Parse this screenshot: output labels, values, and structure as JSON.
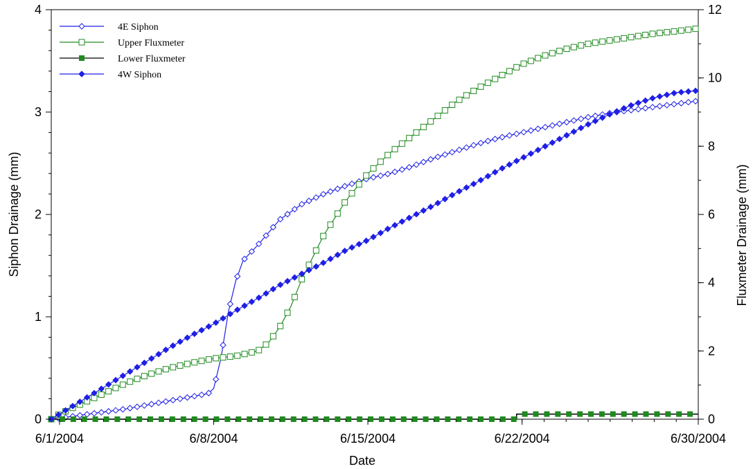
{
  "chart_data": {
    "type": "line",
    "title": "",
    "xlabel": "Date",
    "ylabel": "Siphon Drainage (mm)",
    "y2label": "Fluxmeter Drainage (mm)",
    "x_ticks": [
      "6/1/2004",
      "6/8/2004",
      "6/15/2004",
      "6/22/2004",
      "6/30/2004"
    ],
    "xlim": [
      "2004-05-31T15:00",
      "2004-06-30T00:00"
    ],
    "ylim": [
      0,
      4
    ],
    "y2lim": [
      0,
      12
    ],
    "y_ticks": [
      "0",
      "1",
      "2",
      "3",
      "4"
    ],
    "y2_ticks": [
      "0",
      "2",
      "4",
      "6",
      "8",
      "10",
      "12"
    ],
    "legend_position": "top-left",
    "grid": false,
    "series": [
      {
        "name": "4E Siphon",
        "axis": "left",
        "color": "#1f1fe6",
        "marker": "open-diamond",
        "x": [
          "2004-05-31T15:00",
          "2004-06-01T00:00",
          "2004-06-02T00:00",
          "2004-06-03T00:00",
          "2004-06-04T00:00",
          "2004-06-05T00:00",
          "2004-06-06T00:00",
          "2004-06-07T00:00",
          "2004-06-07T18:00",
          "2004-06-08T00:00",
          "2004-06-08T08:00",
          "2004-06-08T16:00",
          "2004-06-09T00:00",
          "2004-06-09T08:00",
          "2004-06-10T00:00",
          "2004-06-11T00:00",
          "2004-06-12T00:00",
          "2004-06-13T00:00",
          "2004-06-14T00:00",
          "2004-06-15T00:00",
          "2004-06-16T00:00",
          "2004-06-17T00:00",
          "2004-06-18T00:00",
          "2004-06-19T00:00",
          "2004-06-20T00:00",
          "2004-06-21T00:00",
          "2004-06-22T00:00",
          "2004-06-23T00:00",
          "2004-06-24T00:00",
          "2004-06-25T00:00",
          "2004-06-26T00:00",
          "2004-06-27T00:00",
          "2004-06-28T00:00",
          "2004-06-29T00:00",
          "2004-06-30T00:00"
        ],
        "y": [
          0,
          0.01,
          0.04,
          0.07,
          0.1,
          0.14,
          0.18,
          0.22,
          0.25,
          0.3,
          0.6,
          1.05,
          1.35,
          1.55,
          1.7,
          1.95,
          2.1,
          2.2,
          2.28,
          2.35,
          2.4,
          2.47,
          2.55,
          2.62,
          2.69,
          2.75,
          2.8,
          2.85,
          2.9,
          2.95,
          2.99,
          3.02,
          3.05,
          3.08,
          3.11
        ]
      },
      {
        "name": "Upper Fluxmeter",
        "axis": "right",
        "color": "#1f8a1f",
        "marker": "open-square",
        "x": [
          "2004-05-31T15:00",
          "2004-06-01T00:00",
          "2004-06-02T00:00",
          "2004-06-03T00:00",
          "2004-06-04T00:00",
          "2004-06-05T00:00",
          "2004-06-06T00:00",
          "2004-06-07T00:00",
          "2004-06-08T00:00",
          "2004-06-09T00:00",
          "2004-06-10T00:00",
          "2004-06-10T12:00",
          "2004-06-11T00:00",
          "2004-06-11T12:00",
          "2004-06-12T00:00",
          "2004-06-13T00:00",
          "2004-06-14T00:00",
          "2004-06-15T00:00",
          "2004-06-16T00:00",
          "2004-06-17T00:00",
          "2004-06-18T00:00",
          "2004-06-19T00:00",
          "2004-06-20T00:00",
          "2004-06-21T00:00",
          "2004-06-22T00:00",
          "2004-06-23T00:00",
          "2004-06-24T00:00",
          "2004-06-25T00:00",
          "2004-06-26T00:00",
          "2004-06-27T00:00",
          "2004-06-28T00:00",
          "2004-06-29T00:00",
          "2004-06-30T00:00"
        ],
        "y": [
          0,
          0.15,
          0.45,
          0.75,
          1.05,
          1.3,
          1.5,
          1.65,
          1.78,
          1.85,
          2.0,
          2.25,
          2.7,
          3.3,
          4.1,
          5.4,
          6.4,
          7.2,
          7.8,
          8.3,
          8.8,
          9.3,
          9.7,
          10.05,
          10.4,
          10.65,
          10.85,
          11.0,
          11.1,
          11.2,
          11.3,
          11.37,
          11.45
        ]
      },
      {
        "name": "Lower Fluxmeter",
        "axis": "right",
        "color": "#1f8a1f",
        "marker": "filled-square",
        "x": [
          "2004-05-31T15:00",
          "2004-06-21T18:00",
          "2004-06-21T18:00",
          "2004-06-30T00:00"
        ],
        "y": [
          0,
          0,
          0.15,
          0.15
        ]
      },
      {
        "name": "4W Siphon",
        "axis": "left",
        "color": "#1f1fe6",
        "marker": "filled-diamond",
        "x": [
          "2004-05-31T15:00",
          "2004-06-01T00:00",
          "2004-06-02T00:00",
          "2004-06-03T00:00",
          "2004-06-04T00:00",
          "2004-06-05T00:00",
          "2004-06-06T00:00",
          "2004-06-07T00:00",
          "2004-06-08T00:00",
          "2004-06-09T00:00",
          "2004-06-10T00:00",
          "2004-06-11T00:00",
          "2004-06-12T00:00",
          "2004-06-13T00:00",
          "2004-06-14T00:00",
          "2004-06-15T00:00",
          "2004-06-16T00:00",
          "2004-06-17T00:00",
          "2004-06-18T00:00",
          "2004-06-19T00:00",
          "2004-06-20T00:00",
          "2004-06-21T00:00",
          "2004-06-22T00:00",
          "2004-06-23T00:00",
          "2004-06-24T00:00",
          "2004-06-25T00:00",
          "2004-06-26T00:00",
          "2004-06-27T00:00",
          "2004-06-28T00:00",
          "2004-06-29T00:00",
          "2004-06-30T00:00"
        ],
        "y": [
          0,
          0.05,
          0.18,
          0.31,
          0.44,
          0.57,
          0.7,
          0.82,
          0.93,
          1.06,
          1.18,
          1.31,
          1.42,
          1.53,
          1.65,
          1.75,
          1.87,
          1.98,
          2.09,
          2.21,
          2.32,
          2.44,
          2.55,
          2.66,
          2.77,
          2.88,
          2.98,
          3.07,
          3.14,
          3.19,
          3.21
        ]
      }
    ]
  }
}
